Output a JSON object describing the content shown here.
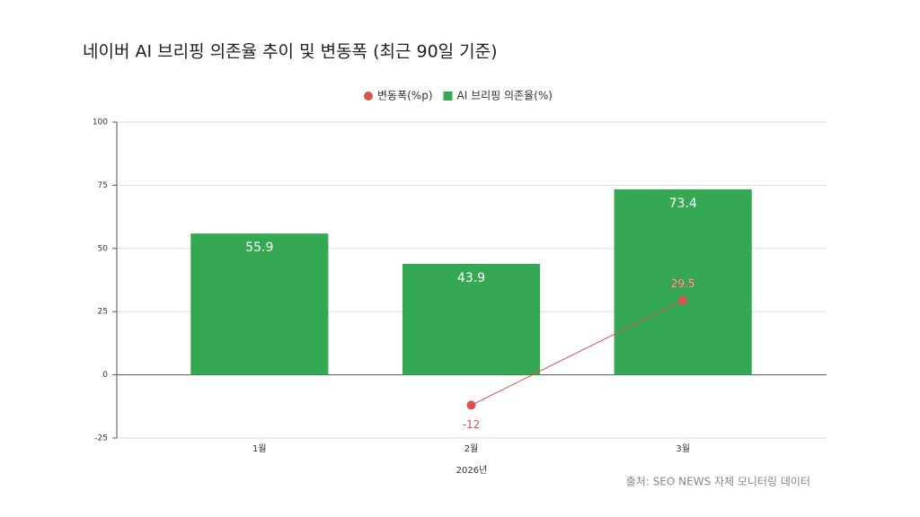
{
  "chart_data": {
    "type": "bar",
    "title": "네이버 AI 브리핑 의존율 추이 및 변동폭 (최근 90일 기준)",
    "x_label": "2026년",
    "source": "출처: SEO NEWS 자체 모니터링 데이터",
    "categories": [
      "1월",
      "2월",
      "3월"
    ],
    "series": [
      {
        "name": "변동폭(%p)",
        "type": "line",
        "color": "#d9534f",
        "values": [
          null,
          -12,
          29.5
        ]
      },
      {
        "name": "AI 브리핑 의존율(%)",
        "type": "bar",
        "color": "#34a853",
        "values": [
          55.9,
          43.9,
          73.4
        ]
      }
    ],
    "ylim": [
      -25,
      100
    ],
    "yticks": [
      -25,
      0,
      25,
      50,
      75,
      100
    ],
    "grid": true,
    "legend": "top"
  }
}
